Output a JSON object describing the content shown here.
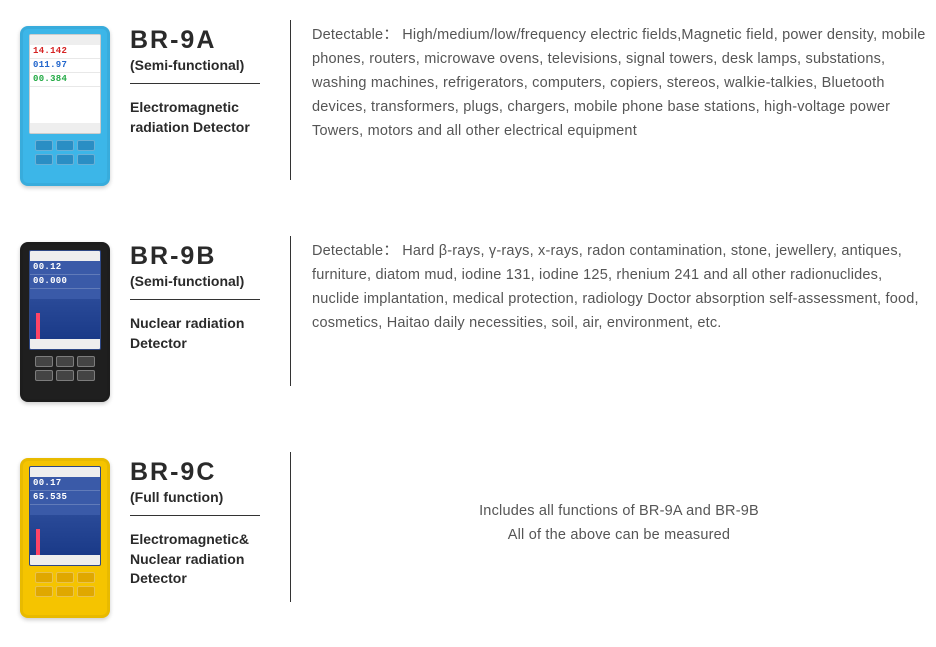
{
  "products": [
    {
      "model": "BR-9A",
      "subtype": "(Semi-functional)",
      "detector_type": "Electromagnetic radiation Detector",
      "device_color": "#3cb6e8",
      "button_color": "#2a8ec4",
      "screen_style": "light",
      "readings": [
        {
          "text": "14.142",
          "color": "#d62222"
        },
        {
          "text": "011.97",
          "color": "#2266cc"
        },
        {
          "text": "00.384",
          "color": "#22aa44"
        }
      ],
      "description": "Detectable： High/medium/low/frequency electric fields,Magnetic field, power density, mobile phones, routers, microwave ovens, televisions, signal towers, desk lamps, substations, washing machines, refrigerators, computers, copiers, stereos, walkie-talkies, Bluetooth devices, transformers, plugs, chargers, mobile phone base stations, high-voltage power Towers, motors and all other electrical equipment",
      "desc_align": "left",
      "vdiv_height": 160
    },
    {
      "model": "BR-9B",
      "subtype": "(Semi-functional)",
      "detector_type": "Nuclear radiation Detector",
      "device_color": "#1f1f1f",
      "button_color": "#444444",
      "screen_style": "dark",
      "readings": [
        {
          "text": "00.12",
          "color": "#ffffff"
        },
        {
          "text": "00.000",
          "color": "#ffffff"
        }
      ],
      "description": "Detectable： Hard β-rays, γ-rays, x-rays, radon contamination, stone, jewellery, antiques, furniture, diatom mud, iodine 131, iodine 125, rhenium 241 and all other radionuclides, nuclide implantation, medical protection, radiology Doctor absorption self-assessment, food, cosmetics, Haitao daily necessities, soil, air, environment, etc.",
      "desc_align": "left",
      "vdiv_height": 150
    },
    {
      "model": "BR-9C",
      "subtype": "(Full function)",
      "detector_type": "Electromagnetic& Nuclear radiation Detector",
      "device_color": "#f5c400",
      "button_color": "#e0a800",
      "screen_style": "dark",
      "readings": [
        {
          "text": "00.17",
          "color": "#ffffff"
        },
        {
          "text": "65.535",
          "color": "#ffffff"
        }
      ],
      "description": "Includes all functions of BR-9A and BR-9B\nAll of the above can be measured",
      "desc_align": "center",
      "vdiv_height": 150
    }
  ]
}
